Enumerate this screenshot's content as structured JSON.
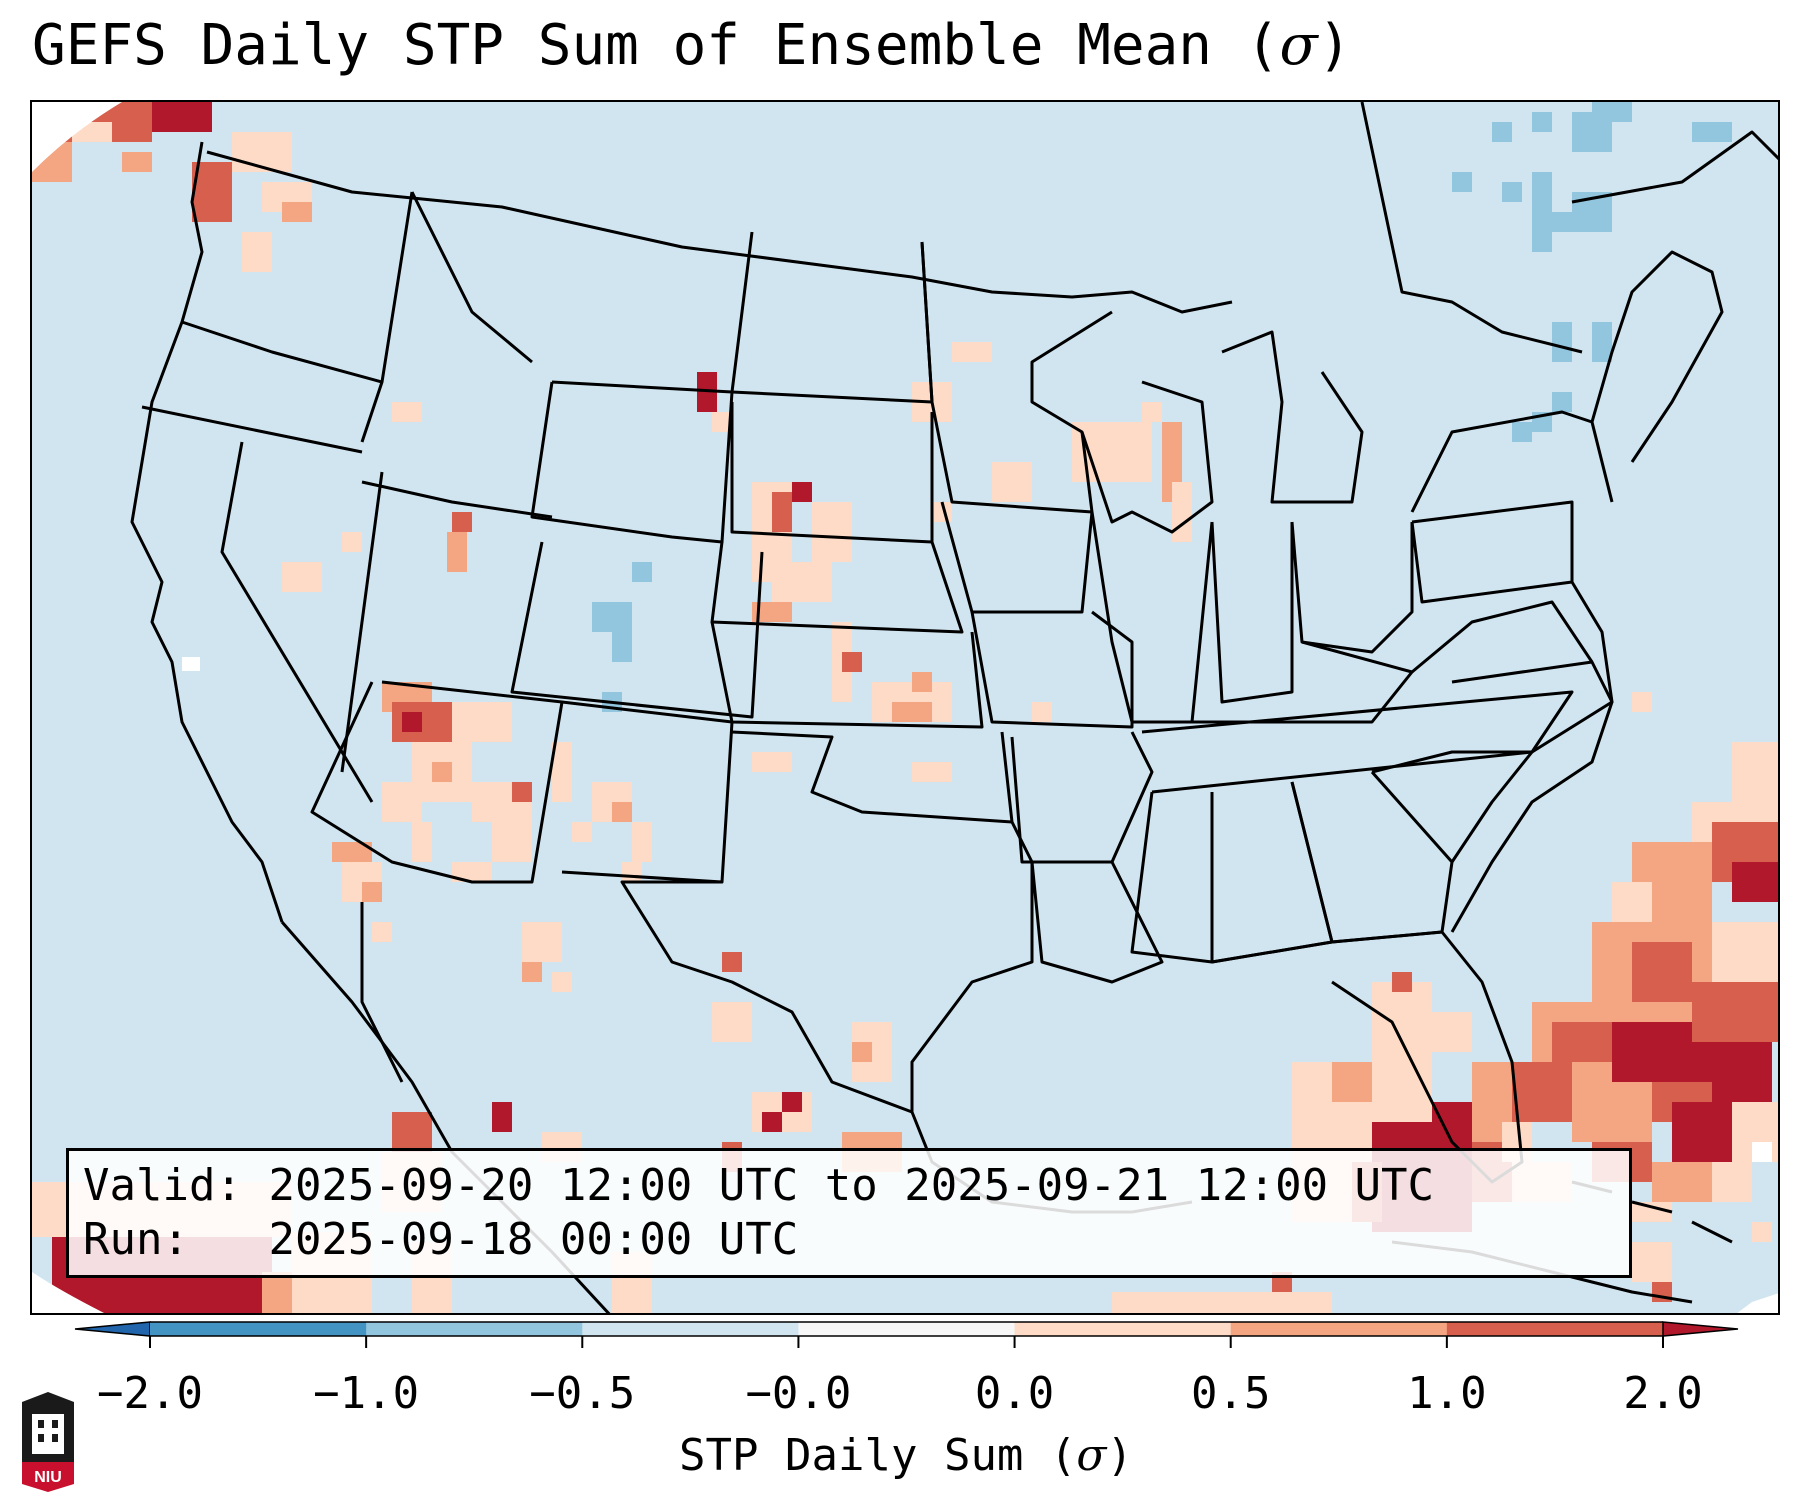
{
  "title": {
    "text": "GEFS Daily STP Sum of Ensemble Mean (",
    "sigma": "σ",
    "close": ")"
  },
  "info": {
    "valid_label": "Valid:",
    "valid_value": "2025-09-20 12:00 UTC to 2025-09-21 12:00 UTC",
    "run_label": "Run:",
    "run_value": "2025-09-18 00:00 UTC"
  },
  "colorbar": {
    "label_text": "STP Daily Sum (",
    "label_sigma": "σ",
    "label_close": ")",
    "ticks": [
      "−2.0",
      "−1.0",
      "−0.5",
      "−0.0",
      "0.0",
      "0.5",
      "1.0",
      "2.0"
    ],
    "colors": [
      "#4393c3",
      "#92c5de",
      "#d1e5f0",
      "#f7f7f7",
      "#fddbc7",
      "#f4a582",
      "#d6604d"
    ],
    "extend_low_color": "#2166ac",
    "extend_high_color": "#b2182b"
  },
  "map": {
    "ocean_color": "#d1e5f0",
    "line_color": "#000000"
  },
  "logo": {
    "text": "NIU"
  }
}
